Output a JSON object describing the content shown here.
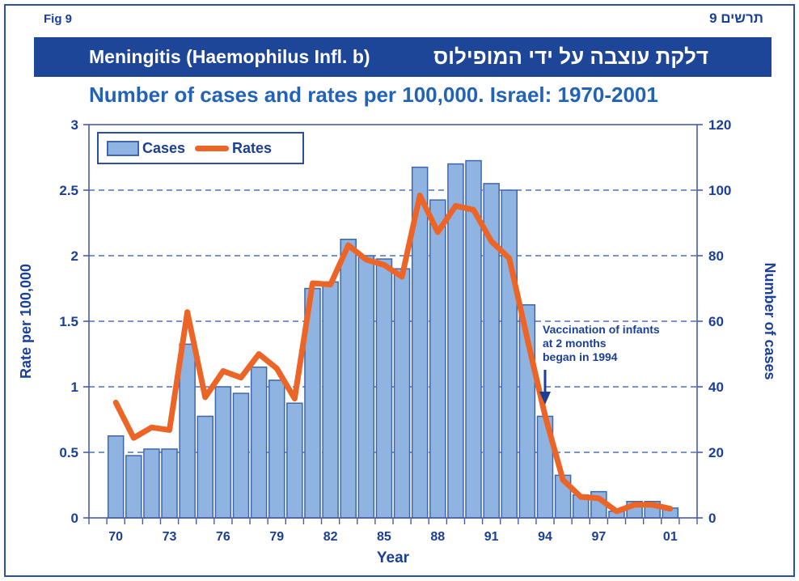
{
  "page": {
    "fig_label": "Fig  9",
    "fig_label_he": "תרשים 9",
    "banner": {
      "title_en": "Meningitis (Haemophilus Infl. b)",
      "title_he": "דלקת עוצבה על ידי המופילוס"
    },
    "subtitle": "Number of cases and rates per 100,000. Israel: 1970-2001"
  },
  "colors": {
    "navy_text": "#1B3F97",
    "banner_bg": "#1D4598",
    "subtitle_blue": "#2263B8",
    "bar_fill": "#8FB4E2",
    "bar_border": "#3E66AC",
    "line_orange": "#EC6527",
    "grid_blue": "#2B55A8",
    "axis_blue": "#4A5AAC"
  },
  "legend": {
    "cases_label": "Cases",
    "rates_label": "Rates"
  },
  "annotation": {
    "lines": [
      "Vaccination of infants",
      "at 2 months",
      "began in 1994"
    ],
    "target_year": 1994
  },
  "chart_data": {
    "type": "bar",
    "subtype": "bar+line combo, dual axis",
    "title": "Number of cases and rates per 100,000. Israel: 1970-2001",
    "categories": [
      1970,
      1971,
      1972,
      1973,
      1974,
      1975,
      1976,
      1977,
      1978,
      1979,
      1980,
      1981,
      1982,
      1983,
      1984,
      1985,
      1986,
      1987,
      1988,
      1989,
      1990,
      1991,
      1992,
      1993,
      1994,
      1995,
      1996,
      1997,
      1998,
      1999,
      2000,
      2001
    ],
    "series": [
      {
        "name": "Cases",
        "type": "bar",
        "axis": "right",
        "values": [
          25,
          19,
          21,
          21,
          53,
          31,
          40,
          38,
          46,
          42,
          35,
          70,
          72,
          85,
          80,
          79,
          76,
          107,
          97,
          108,
          109,
          102,
          100,
          65,
          31,
          13,
          7,
          8,
          2,
          5,
          5,
          3
        ]
      },
      {
        "name": "Rates",
        "type": "line",
        "axis": "left",
        "values": [
          0.88,
          0.61,
          0.69,
          0.67,
          1.57,
          0.92,
          1.12,
          1.07,
          1.25,
          1.14,
          0.91,
          1.79,
          1.78,
          2.08,
          1.97,
          1.93,
          1.84,
          2.46,
          2.18,
          2.38,
          2.35,
          2.11,
          1.98,
          1.37,
          0.78,
          0.29,
          0.16,
          0.15,
          0.05,
          0.1,
          0.1,
          0.07
        ]
      }
    ],
    "left_axis": {
      "label": "Rate per 100,000",
      "min": 0,
      "max": 3,
      "ticks": [
        0,
        0.5,
        1,
        1.5,
        2,
        2.5,
        3
      ],
      "tick_labels": [
        "0",
        "0.5",
        "1",
        "1.5",
        "2",
        "2.5",
        "3"
      ]
    },
    "right_axis": {
      "label": "Number of cases",
      "min": 0,
      "max": 120,
      "ticks": [
        0,
        20,
        40,
        60,
        80,
        100,
        120
      ]
    },
    "x_axis": {
      "label": "Year",
      "tick_years": [
        1970,
        1973,
        1976,
        1979,
        1982,
        1985,
        1988,
        1991,
        1994,
        1997,
        2001
      ],
      "tick_labels": [
        "70",
        "73",
        "76",
        "79",
        "82",
        "85",
        "88",
        "91",
        "94",
        "97",
        "01"
      ]
    },
    "grid": "dashed horizontal gridlines at 0.5 rate intervals",
    "legend_position": "top-left inside plot"
  }
}
